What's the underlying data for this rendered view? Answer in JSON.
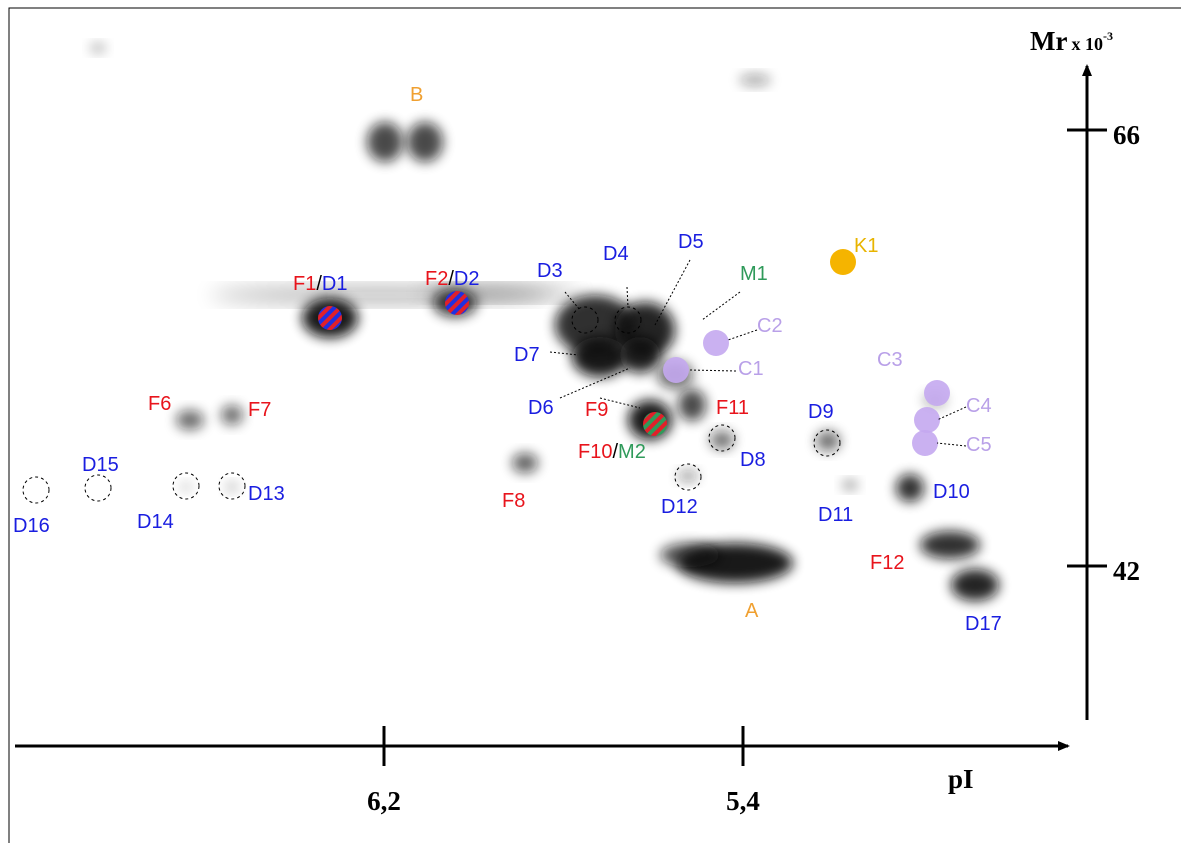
{
  "axis": {
    "y_title": "Mr",
    "y_title_unit": "x 10",
    "y_title_exponent": "-3",
    "y_ticks": [
      "66",
      "42"
    ],
    "x_title": "pI",
    "x_ticks": [
      "6,2",
      "5,4"
    ]
  },
  "spot_labels": [
    [
      "B"
    ],
    [
      "F1",
      "/",
      "D1"
    ],
    [
      "F2",
      "/",
      "D2"
    ],
    [
      "D3"
    ],
    [
      "D4"
    ],
    [
      "D5"
    ],
    [
      "M1"
    ],
    [
      "C2"
    ],
    [
      "C1"
    ],
    [
      "D7"
    ],
    [
      "D6"
    ],
    [
      "F9"
    ],
    [
      "F10",
      "/",
      "M2"
    ],
    [
      "F11"
    ],
    [
      "D8"
    ],
    [
      "D9"
    ],
    [
      "D12"
    ],
    [
      "D11"
    ],
    [
      "D10"
    ],
    [
      "F12"
    ],
    [
      "A"
    ],
    [
      "D17"
    ],
    [
      "K1"
    ],
    [
      "C3"
    ],
    [
      "C4"
    ],
    [
      "C5"
    ],
    [
      "F6"
    ],
    [
      "F7"
    ],
    [
      "F8"
    ],
    [
      "D15"
    ],
    [
      "D13"
    ],
    [
      "D14"
    ],
    [
      "D16"
    ]
  ]
}
